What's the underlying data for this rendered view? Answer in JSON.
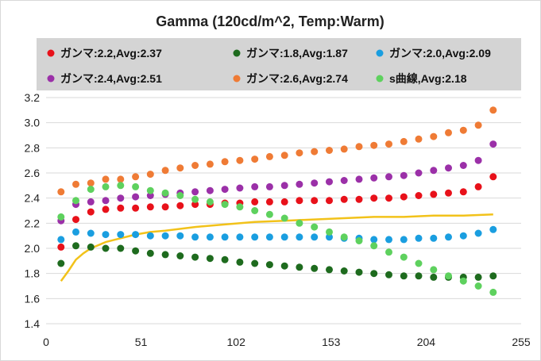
{
  "chart_data": {
    "type": "scatter",
    "title": "Gamma (120cd/m^2, Temp:Warm)",
    "xlabel": "",
    "ylabel": "",
    "xlim": [
      0,
      255
    ],
    "ylim": [
      1.4,
      3.2
    ],
    "xticks": [
      "0",
      "51",
      "102",
      "153",
      "204",
      "255"
    ],
    "yticks": [
      "1.4",
      "1.6",
      "1.8",
      "2.0",
      "2.2",
      "2.4",
      "2.6",
      "2.8",
      "3.0",
      "3.2"
    ],
    "grid": "horizontal",
    "legend_position": "top",
    "x": [
      8,
      16,
      24,
      32,
      40,
      48,
      56,
      64,
      72,
      80,
      88,
      96,
      104,
      112,
      120,
      128,
      136,
      144,
      152,
      160,
      168,
      176,
      184,
      192,
      200,
      208,
      216,
      224,
      232,
      240
    ],
    "series": [
      {
        "name": "ガンマ:2.2,Avg:2.37",
        "color": "#e8111a",
        "values": [
          2.01,
          2.23,
          2.29,
          2.31,
          2.32,
          2.32,
          2.33,
          2.33,
          2.34,
          2.35,
          2.35,
          2.36,
          2.36,
          2.37,
          2.37,
          2.37,
          2.38,
          2.38,
          2.38,
          2.39,
          2.39,
          2.4,
          2.4,
          2.41,
          2.42,
          2.43,
          2.44,
          2.45,
          2.49,
          2.57
        ]
      },
      {
        "name": "ガンマ:1.8,Avg:1.87",
        "color": "#1e6b1e",
        "values": [
          1.88,
          2.02,
          2.01,
          2.0,
          2.0,
          1.98,
          1.96,
          1.95,
          1.94,
          1.93,
          1.92,
          1.91,
          1.89,
          1.88,
          1.87,
          1.86,
          1.85,
          1.84,
          1.83,
          1.82,
          1.81,
          1.8,
          1.79,
          1.78,
          1.78,
          1.77,
          1.77,
          1.77,
          1.77,
          1.78
        ]
      },
      {
        "name": "ガンマ:2.0,Avg:2.09",
        "color": "#1a9ee0",
        "values": [
          2.07,
          2.13,
          2.12,
          2.11,
          2.11,
          2.11,
          2.1,
          2.1,
          2.1,
          2.09,
          2.09,
          2.09,
          2.09,
          2.09,
          2.09,
          2.09,
          2.09,
          2.09,
          2.09,
          2.08,
          2.08,
          2.07,
          2.07,
          2.07,
          2.08,
          2.08,
          2.09,
          2.1,
          2.12,
          2.15
        ]
      },
      {
        "name": "ガンマ:2.4,Avg:2.51",
        "color": "#9b30a8",
        "values": [
          2.22,
          2.35,
          2.37,
          2.38,
          2.4,
          2.41,
          2.42,
          2.43,
          2.44,
          2.45,
          2.46,
          2.47,
          2.48,
          2.49,
          2.49,
          2.5,
          2.51,
          2.52,
          2.53,
          2.54,
          2.55,
          2.56,
          2.57,
          2.58,
          2.6,
          2.62,
          2.64,
          2.66,
          2.7,
          2.83
        ]
      },
      {
        "name": "ガンマ:2.6,Avg:2.74",
        "color": "#ef7b35",
        "values": [
          2.45,
          2.51,
          2.52,
          2.55,
          2.55,
          2.57,
          2.59,
          2.62,
          2.64,
          2.66,
          2.67,
          2.69,
          2.7,
          2.71,
          2.73,
          2.74,
          2.76,
          2.77,
          2.78,
          2.79,
          2.81,
          2.82,
          2.83,
          2.85,
          2.87,
          2.89,
          2.92,
          2.94,
          2.98,
          3.1
        ]
      },
      {
        "name": "s曲線,Avg:2.18",
        "color": "#5ed15e",
        "values": [
          2.25,
          2.38,
          2.47,
          2.49,
          2.5,
          2.49,
          2.46,
          2.44,
          2.42,
          2.39,
          2.37,
          2.35,
          2.33,
          2.3,
          2.27,
          2.24,
          2.2,
          2.17,
          2.13,
          2.09,
          2.06,
          2.02,
          1.97,
          1.93,
          1.88,
          1.83,
          1.78,
          1.74,
          1.7,
          1.65
        ]
      }
    ],
    "reference_line": {
      "color": "#f2c21a",
      "x": [
        8,
        12,
        16,
        20,
        24,
        32,
        40,
        48,
        56,
        64,
        80,
        96,
        112,
        128,
        144,
        160,
        176,
        192,
        208,
        224,
        240
      ],
      "values": [
        1.74,
        1.82,
        1.91,
        1.96,
        2.0,
        2.05,
        2.08,
        2.11,
        2.13,
        2.14,
        2.17,
        2.19,
        2.21,
        2.22,
        2.23,
        2.24,
        2.25,
        2.25,
        2.26,
        2.26,
        2.27
      ]
    }
  }
}
